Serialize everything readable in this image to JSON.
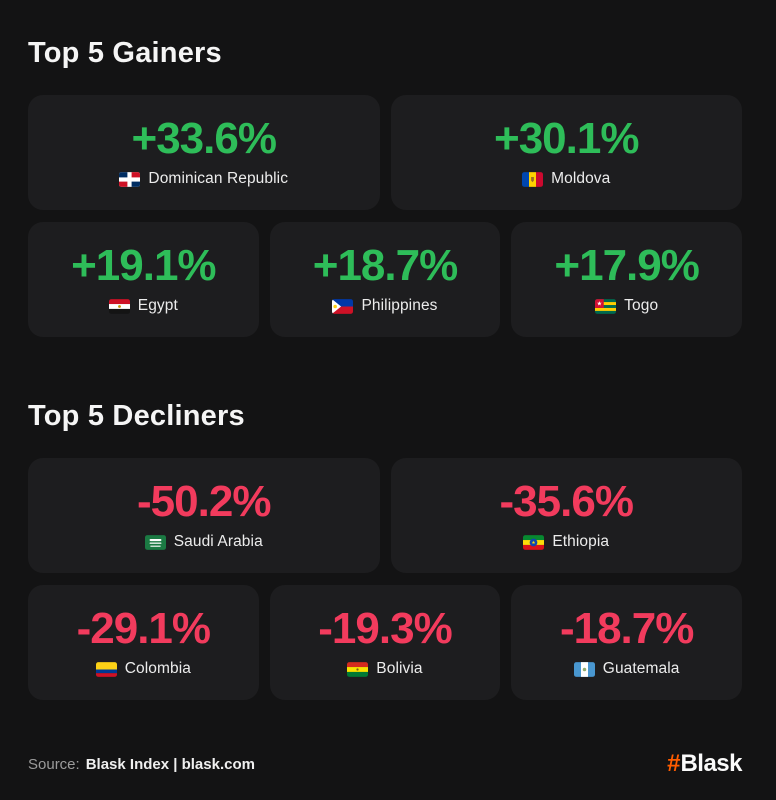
{
  "colors": {
    "page_bg": "#131314",
    "card_bg": "#1d1d1f",
    "gain": "#2ebd59",
    "decline": "#f23b5d",
    "logo_orange": "#ff5c00"
  },
  "sections": [
    {
      "title": "Top 5 Gainers",
      "trend": "gain",
      "cards": [
        {
          "value": "+33.6%",
          "country": "Dominican Republic",
          "flag": "dominican-republic",
          "size": "wide"
        },
        {
          "value": "+30.1%",
          "country": "Moldova",
          "flag": "moldova",
          "size": "wide"
        },
        {
          "value": "+19.1%",
          "country": "Egypt",
          "flag": "egypt",
          "size": "small"
        },
        {
          "value": "+18.7%",
          "country": "Philippines",
          "flag": "philippines",
          "size": "small"
        },
        {
          "value": "+17.9%",
          "country": "Togo",
          "flag": "togo",
          "size": "small"
        }
      ]
    },
    {
      "title": "Top 5 Decliners",
      "trend": "decline",
      "cards": [
        {
          "value": "-50.2%",
          "country": "Saudi Arabia",
          "flag": "saudi-arabia",
          "size": "wide"
        },
        {
          "value": "-35.6%",
          "country": "Ethiopia",
          "flag": "ethiopia",
          "size": "wide"
        },
        {
          "value": "-29.1%",
          "country": "Colombia",
          "flag": "colombia",
          "size": "small"
        },
        {
          "value": "-19.3%",
          "country": "Bolivia",
          "flag": "bolivia",
          "size": "small"
        },
        {
          "value": "-18.7%",
          "country": "Guatemala",
          "flag": "guatemala",
          "size": "small"
        }
      ]
    }
  ],
  "footer": {
    "source_label": "Source:",
    "source_value": "Blask Index | blask.com",
    "logo_hash": "#",
    "logo_text": "Blask"
  },
  "chart_data": [
    {
      "type": "table",
      "title": "Top 5 Gainers",
      "categories": [
        "Dominican Republic",
        "Moldova",
        "Egypt",
        "Philippines",
        "Togo"
      ],
      "values": [
        33.6,
        30.1,
        19.1,
        18.7,
        17.9
      ],
      "unit": "%",
      "value_color": "#2ebd59"
    },
    {
      "type": "table",
      "title": "Top 5 Decliners",
      "categories": [
        "Saudi Arabia",
        "Ethiopia",
        "Colombia",
        "Bolivia",
        "Guatemala"
      ],
      "values": [
        -50.2,
        -35.6,
        -29.1,
        -19.3,
        -18.7
      ],
      "unit": "%",
      "value_color": "#f23b5d"
    }
  ]
}
